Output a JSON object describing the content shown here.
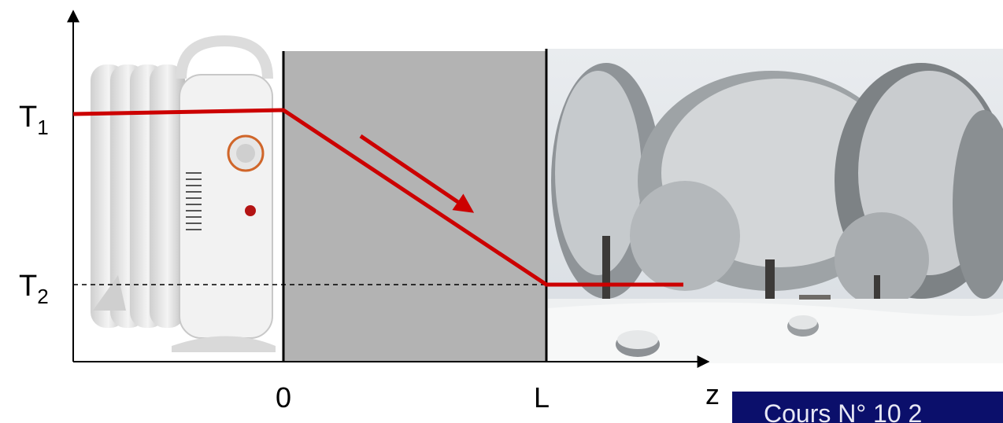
{
  "labels": {
    "t1_main": "T",
    "t1_sub": "1",
    "t2_main": "T",
    "t2_sub": "2",
    "x_zero": "0",
    "x_L": "L",
    "x_z": "z"
  },
  "badge": {
    "text": "Cours N° 10 2"
  },
  "colors": {
    "wall": "#b3b3b3",
    "profile": "#cc0000",
    "axis": "#000000",
    "badge_bg": "#0b0f6b"
  },
  "illustrations": {
    "left": "oil-radiator-heater",
    "right": "snowy-winter-landscape"
  }
}
